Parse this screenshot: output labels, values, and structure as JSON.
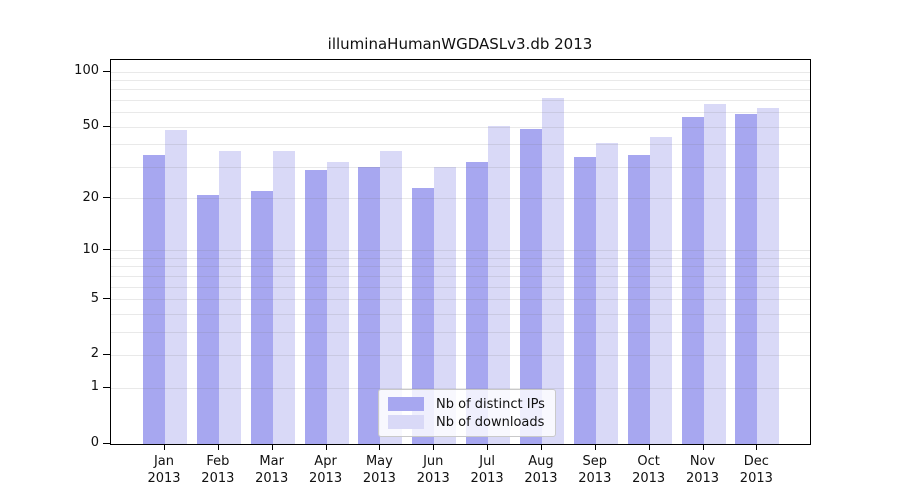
{
  "title": "illuminaHumanWGDASLv3.db 2013",
  "chart_data": {
    "type": "bar",
    "title": "illuminaHumanWGDASLv3.db 2013",
    "categories": [
      "Jan 2013",
      "Feb 2013",
      "Mar 2013",
      "Apr 2013",
      "May 2013",
      "Jun 2013",
      "Jul 2013",
      "Aug 2013",
      "Sep 2013",
      "Oct 2013",
      "Nov 2013",
      "Dec 2013"
    ],
    "series": [
      {
        "name": "Nb of distinct IPs",
        "color": "#a7a7f0",
        "values": [
          35,
          21,
          22,
          29,
          30,
          23,
          32,
          49,
          34,
          35,
          57,
          59
        ]
      },
      {
        "name": "Nb of downloads",
        "color": "#d9d9f7",
        "values": [
          48,
          37,
          37,
          32,
          37,
          30,
          51,
          72,
          41,
          44,
          67,
          64
        ]
      }
    ],
    "yscale": "log1p",
    "ylim": [
      0,
      100
    ],
    "y_ticks": [
      0,
      1,
      2,
      5,
      10,
      20,
      50,
      100
    ],
    "y_gridlines": [
      1,
      2,
      3,
      4,
      5,
      6,
      7,
      8,
      9,
      10,
      20,
      30,
      40,
      50,
      60,
      70,
      80,
      90,
      100
    ],
    "grid": "horizontal",
    "legend_position": "inside-bottom-center"
  }
}
